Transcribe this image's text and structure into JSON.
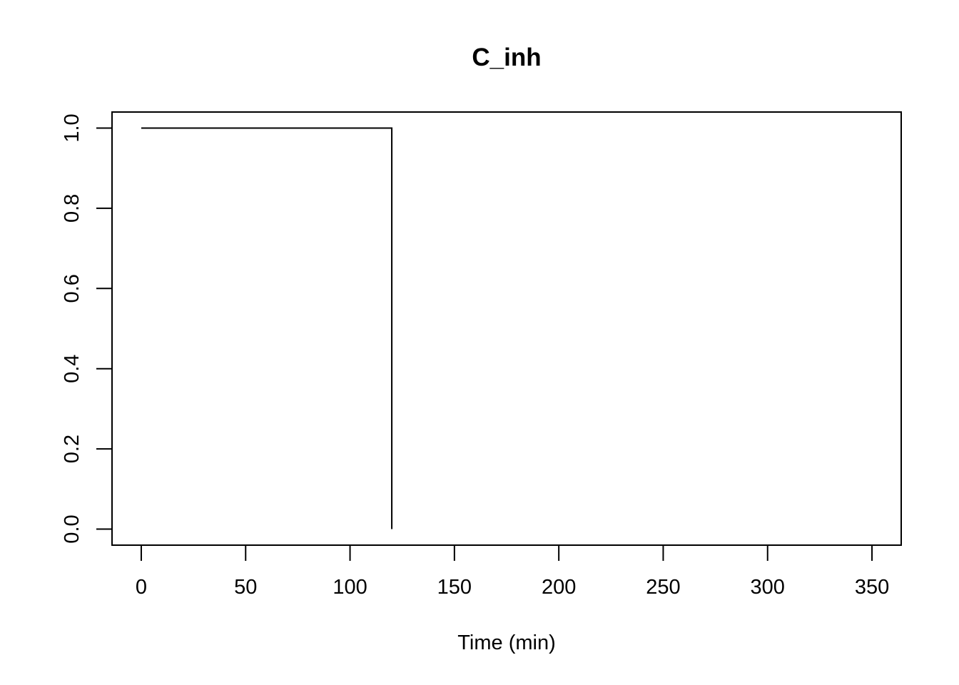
{
  "chart_data": {
    "type": "line",
    "title": "C_inh",
    "xlabel": "Time (min)",
    "ylabel": "",
    "xlim": [
      -14,
      364
    ],
    "ylim": [
      -0.04,
      1.04
    ],
    "xticks": [
      0,
      50,
      100,
      150,
      200,
      250,
      300,
      350
    ],
    "yticks": [
      0.0,
      0.2,
      0.4,
      0.6,
      0.8,
      1.0
    ],
    "xtick_labels": [
      "0",
      "50",
      "100",
      "150",
      "200",
      "250",
      "300",
      "350"
    ],
    "ytick_labels": [
      "0.0",
      "0.2",
      "0.4",
      "0.6",
      "0.8",
      "1.0"
    ],
    "grid": false,
    "legend": "none",
    "series": [
      {
        "x": [
          0,
          120,
          120
        ],
        "y": [
          1.0,
          1.0,
          0.0
        ],
        "color": "#000000"
      }
    ]
  }
}
